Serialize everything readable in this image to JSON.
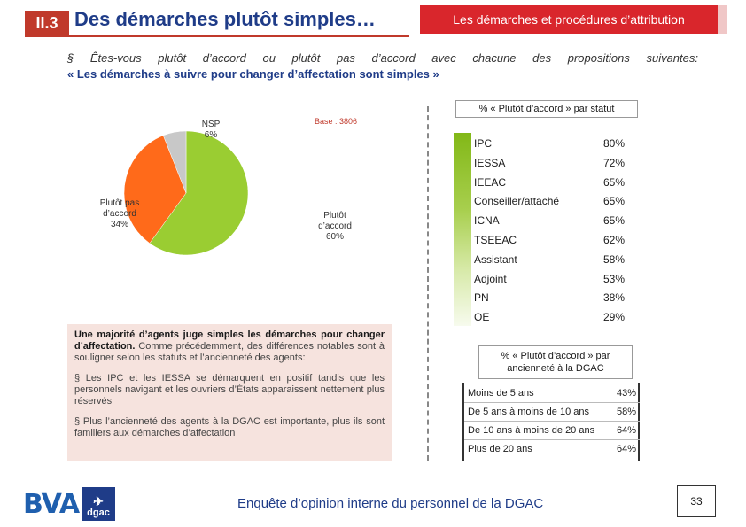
{
  "header": {
    "section_number": "II.3",
    "title": "Des démarches plutôt simples…",
    "section_tag": "Les démarches et procédures d’attribution",
    "question": "§  Êtes-vous plutôt d’accord ou plutôt pas d’accord avec chacune des propositions suivantes:",
    "proposition": "« Les démarches à suivre pour changer d’affectation sont simples »"
  },
  "colors": {
    "accent_red": "#c0392b",
    "brand_blue": "#1f3c88",
    "agree_green": "#9acd32",
    "disagree_orange": "#ff6a1a",
    "nsp_grey": "#c8c8c8"
  },
  "chart_data": [
    {
      "type": "pie",
      "title": "",
      "base": "Base : 3806",
      "slices": [
        {
          "label": "Plutôt d’accord",
          "value": 60,
          "text": "60%"
        },
        {
          "label": "Plutôt pas d’accord",
          "value": 34,
          "text": "34%"
        },
        {
          "label": "NSP",
          "value": 6,
          "text": "6%"
        }
      ]
    },
    {
      "type": "table",
      "title": "% « Plutôt d’accord » par statut",
      "rows": [
        {
          "label": "IPC",
          "value": "80%"
        },
        {
          "label": "IESSA",
          "value": "72%"
        },
        {
          "label": "IEEAC",
          "value": "65%"
        },
        {
          "label": "Conseiller/attaché",
          "value": "65%"
        },
        {
          "label": "ICNA",
          "value": "65%"
        },
        {
          "label": "TSEEAC",
          "value": "62%"
        },
        {
          "label": "Assistant",
          "value": "58%"
        },
        {
          "label": "Adjoint",
          "value": "53%"
        },
        {
          "label": "PN",
          "value": "38%"
        },
        {
          "label": "OE",
          "value": "29%"
        }
      ]
    },
    {
      "type": "table",
      "title": "% « Plutôt d’accord » par ancienneté à la DGAC",
      "rows": [
        {
          "label": "Moins de 5 ans",
          "value": "43%"
        },
        {
          "label": "De 5 ans à moins de 10 ans",
          "value": "58%"
        },
        {
          "label": "De 10 ans à moins de 20 ans",
          "value": "64%"
        },
        {
          "label": "Plus de 20 ans",
          "value": "64%"
        }
      ]
    }
  ],
  "pie_labels": {
    "nsp_name": "NSP",
    "nsp_value": "6%",
    "disagree_name": "Plutôt pas d’accord",
    "disagree_value": "34%",
    "agree_name": "Plutôt d’accord",
    "agree_value": "60%"
  },
  "comment": {
    "lead_bold": "Une majorité d’agents juge simples les démarches pour changer d’affectation.",
    "lead_rest": " Comme précédemment, des différences notables sont à souligner  selon les statuts et l’ancienneté des agents:",
    "bullet1": "§ Les IPC et les IESSA se démarquent en positif tandis que les personnels navigant et les ouvriers d’États apparaissent nettement plus réservés",
    "bullet2": "§ Plus l’ancienneté des agents à la DGAC est importante, plus ils sont familiers aux démarches d’affectation"
  },
  "footer": {
    "survey": "Enquête d’opinion interne du personnel de la DGAC",
    "page": "33",
    "logo_bva": "BVA",
    "logo_dgac": "dgac"
  }
}
